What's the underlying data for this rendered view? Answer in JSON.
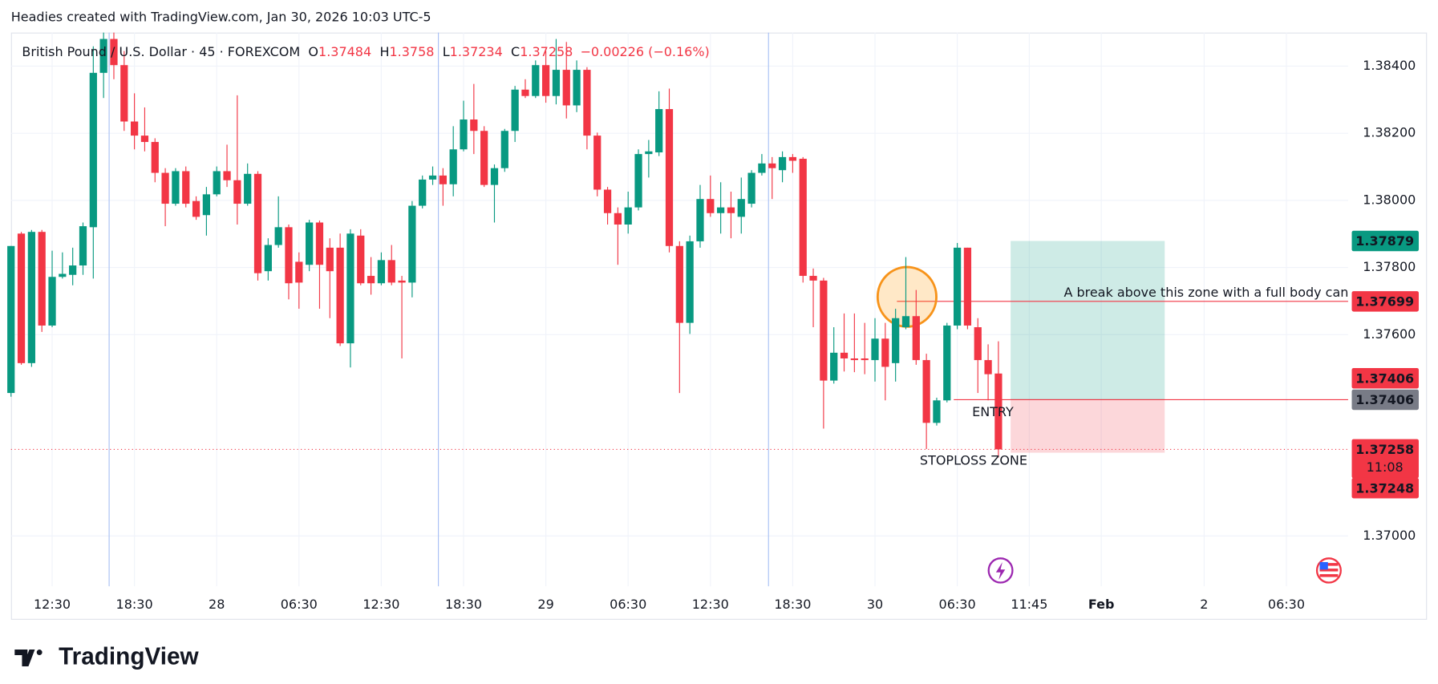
{
  "attribution": "Headies created with TradingView.com, Jan 30, 2026 10:03 UTC-5",
  "footer_logo": "TradingView",
  "chart_data": {
    "type": "candlestick",
    "title": "British Pound / U.S. Dollar · 45 · FOREXCOM",
    "ohlc_labels": [
      "O",
      "H",
      "L",
      "C"
    ],
    "change": "−0.00226 (−0.16%)",
    "up_color": "#089981",
    "down_color": "#f23645",
    "grid": true,
    "open": [
      1.37426,
      1.37901,
      1.37515,
      1.37906,
      1.37627,
      1.37772,
      1.37778,
      1.37806,
      1.3792,
      1.3838,
      1.38481,
      1.38403,
      1.38235,
      1.38193,
      1.38174,
      1.38082,
      1.3799,
      1.38087,
      1.37998,
      1.37956,
      1.38018,
      1.38087,
      1.3806,
      1.3799,
      1.38079,
      1.37789,
      1.37867,
      1.3792,
      1.37817,
      1.37808,
      1.37934,
      1.37859,
      1.37859,
      1.37574,
      1.37895,
      1.37775,
      1.37753,
      1.37822,
      1.37761,
      1.37755,
      1.37984,
      1.38062,
      1.38074,
      1.38048,
      1.38152,
      1.38241,
      1.38207,
      1.38046,
      1.38096,
      1.38207,
      1.3833,
      1.38311,
      1.38403,
      1.38311,
      1.38389,
      1.38283,
      1.38389,
      1.38193,
      1.38032,
      1.37962,
      1.37928,
      1.37979,
      1.38138,
      1.38143,
      1.38272,
      1.37864,
      1.37635,
      1.37878,
      1.38004,
      1.37962,
      1.37979,
      1.37951,
      1.3799,
      1.38082,
      1.3811,
      1.3809,
      1.38129,
      1.38124,
      1.37775,
      1.37761,
      1.37463,
      1.37546,
      1.37529,
      1.37529,
      1.37524,
      1.37588,
      1.37515,
      1.37622,
      1.37655,
      1.37524,
      1.37337,
      1.37404,
      1.37627,
      1.37859,
      1.37622,
      1.37524,
      1.37484
    ],
    "high": [
      1.37864,
      1.37906,
      1.37912,
      1.37912,
      1.3785,
      1.37845,
      1.37859,
      1.37934,
      1.38459,
      1.385,
      1.385,
      1.38445,
      1.38319,
      1.38277,
      1.38185,
      1.38096,
      1.38096,
      1.38101,
      1.38012,
      1.3804,
      1.38101,
      1.38166,
      1.38313,
      1.3811,
      1.38087,
      1.37887,
      1.38012,
      1.37928,
      1.37845,
      1.37942,
      1.3794,
      1.37887,
      1.37901,
      1.37914,
      1.37914,
      1.37831,
      1.37845,
      1.37867,
      1.37775,
      1.37998,
      1.38074,
      1.38101,
      1.38096,
      1.38221,
      1.38297,
      1.38347,
      1.38221,
      1.38107,
      1.38213,
      1.38341,
      1.38361,
      1.38417,
      1.38445,
      1.38481,
      1.38472,
      1.38417,
      1.38397,
      1.38202,
      1.3804,
      1.37979,
      1.38026,
      1.38152,
      1.3818,
      1.38325,
      1.38333,
      1.37878,
      1.37895,
      1.38046,
      1.38074,
      1.38054,
      1.38026,
      1.38068,
      1.3809,
      1.38138,
      1.38129,
      1.38146,
      1.38138,
      1.38129,
      1.37797,
      1.37769,
      1.37622,
      1.37663,
      1.37663,
      1.37635,
      1.37649,
      1.37635,
      1.37677,
      1.37831,
      1.37733,
      1.37543,
      1.37412,
      1.37635,
      1.37873,
      1.37859,
      1.37649,
      1.37571,
      1.3758
    ],
    "low": [
      1.37415,
      1.3751,
      1.37504,
      1.37608,
      1.37622,
      1.37767,
      1.37747,
      1.37778,
      1.37767,
      1.38305,
      1.38361,
      1.38207,
      1.38152,
      1.38146,
      1.38054,
      1.37923,
      1.37984,
      1.37979,
      1.37942,
      1.37895,
      1.38012,
      1.3804,
      1.37928,
      1.37984,
      1.37761,
      1.37761,
      1.37859,
      1.37705,
      1.37677,
      1.37789,
      1.37677,
      1.37649,
      1.37566,
      1.37502,
      1.37747,
      1.37719,
      1.37747,
      1.37747,
      1.37529,
      1.37711,
      1.37976,
      1.38046,
      1.37984,
      1.38012,
      1.38146,
      1.38138,
      1.3804,
      1.37934,
      1.38085,
      1.38174,
      1.38305,
      1.38305,
      1.38291,
      1.38286,
      1.38244,
      1.38263,
      1.38152,
      1.38012,
      1.37928,
      1.37808,
      1.37901,
      1.3797,
      1.38068,
      1.38132,
      1.37845,
      1.37426,
      1.37602,
      1.37859,
      1.37951,
      1.37901,
      1.37887,
      1.37901,
      1.37979,
      1.38074,
      1.38004,
      1.38054,
      1.38082,
      1.37755,
      1.37622,
      1.3732,
      1.37454,
      1.3749,
      1.37488,
      1.37482,
      1.3746,
      1.37404,
      1.3746,
      1.37616,
      1.3751,
      1.37259,
      1.37329,
      1.37398,
      1.37616,
      1.37616,
      1.37426,
      1.37404,
      1.37234
    ],
    "close": [
      1.37864,
      1.37515,
      1.37906,
      1.37627,
      1.37772,
      1.37781,
      1.37806,
      1.37923,
      1.3838,
      1.38481,
      1.38403,
      1.38235,
      1.38193,
      1.38174,
      1.38082,
      1.3799,
      1.38087,
      1.3799,
      1.37951,
      1.38018,
      1.38087,
      1.3806,
      1.3799,
      1.38079,
      1.37783,
      1.37867,
      1.3792,
      1.37753,
      1.37755,
      1.37934,
      1.37808,
      1.37789,
      1.37574,
      1.37901,
      1.37753,
      1.37753,
      1.37822,
      1.37755,
      1.37755,
      1.37984,
      1.38062,
      1.38074,
      1.38048,
      1.38152,
      1.38241,
      1.38207,
      1.38046,
      1.38096,
      1.38207,
      1.3833,
      1.38311,
      1.38403,
      1.38311,
      1.38389,
      1.38283,
      1.38389,
      1.38193,
      1.38032,
      1.37962,
      1.37928,
      1.37979,
      1.38138,
      1.38146,
      1.38272,
      1.37864,
      1.37635,
      1.37878,
      1.38004,
      1.37962,
      1.37979,
      1.37962,
      1.38004,
      1.38082,
      1.3811,
      1.38096,
      1.38129,
      1.38118,
      1.37775,
      1.37761,
      1.37463,
      1.37546,
      1.37529,
      1.37524,
      1.37524,
      1.37588,
      1.37504,
      1.37649,
      1.37655,
      1.37524,
      1.37337,
      1.37404,
      1.37627,
      1.37859,
      1.37627,
      1.37524,
      1.37482,
      1.37258
    ],
    "countdown": "11:08",
    "xlim": [
      0,
      130
    ],
    "xticks": [
      {
        "value": 4,
        "label": "12:30"
      },
      {
        "value": 12,
        "label": "18:30"
      },
      {
        "value": 20,
        "label": "28"
      },
      {
        "value": 28,
        "label": "06:30"
      },
      {
        "value": 36,
        "label": "12:30"
      },
      {
        "value": 44,
        "label": "18:30"
      },
      {
        "value": 52,
        "label": "29"
      },
      {
        "value": 60,
        "label": "06:30"
      },
      {
        "value": 68,
        "label": "12:30"
      },
      {
        "value": 76,
        "label": "18:30"
      },
      {
        "value": 84,
        "label": "30"
      },
      {
        "value": 92,
        "label": "06:30"
      },
      {
        "value": 99,
        "label": "11:45"
      },
      {
        "value": 106,
        "label": "Feb"
      },
      {
        "value": 116,
        "label": "2"
      },
      {
        "value": 124,
        "label": "06:30"
      }
    ],
    "ylim": [
      1.3685,
      1.385
    ],
    "yticks": [
      {
        "value": 1.384,
        "label": "1.38400"
      },
      {
        "value": 1.382,
        "label": "1.38200"
      },
      {
        "value": 1.38,
        "label": "1.38000"
      },
      {
        "value": 1.378,
        "label": "1.37800"
      },
      {
        "value": 1.376,
        "label": "1.37600"
      },
      {
        "value": 1.37,
        "label": "1.37000"
      }
    ],
    "lines": [
      {
        "price": 1.37699,
        "color": "#f23645",
        "text": "A break above this zone with a full body can"
      },
      {
        "price": 1.37406,
        "color": "#f23645"
      }
    ],
    "position": {
      "entry": 1.37406,
      "target": 1.37879,
      "stop": 1.37248,
      "entry_label": "ENTRY",
      "stop_label": "STOPLOSS ZONE",
      "entry_color": "#787b86",
      "target_color": "#089981",
      "stop_color": "#f23645"
    }
  }
}
